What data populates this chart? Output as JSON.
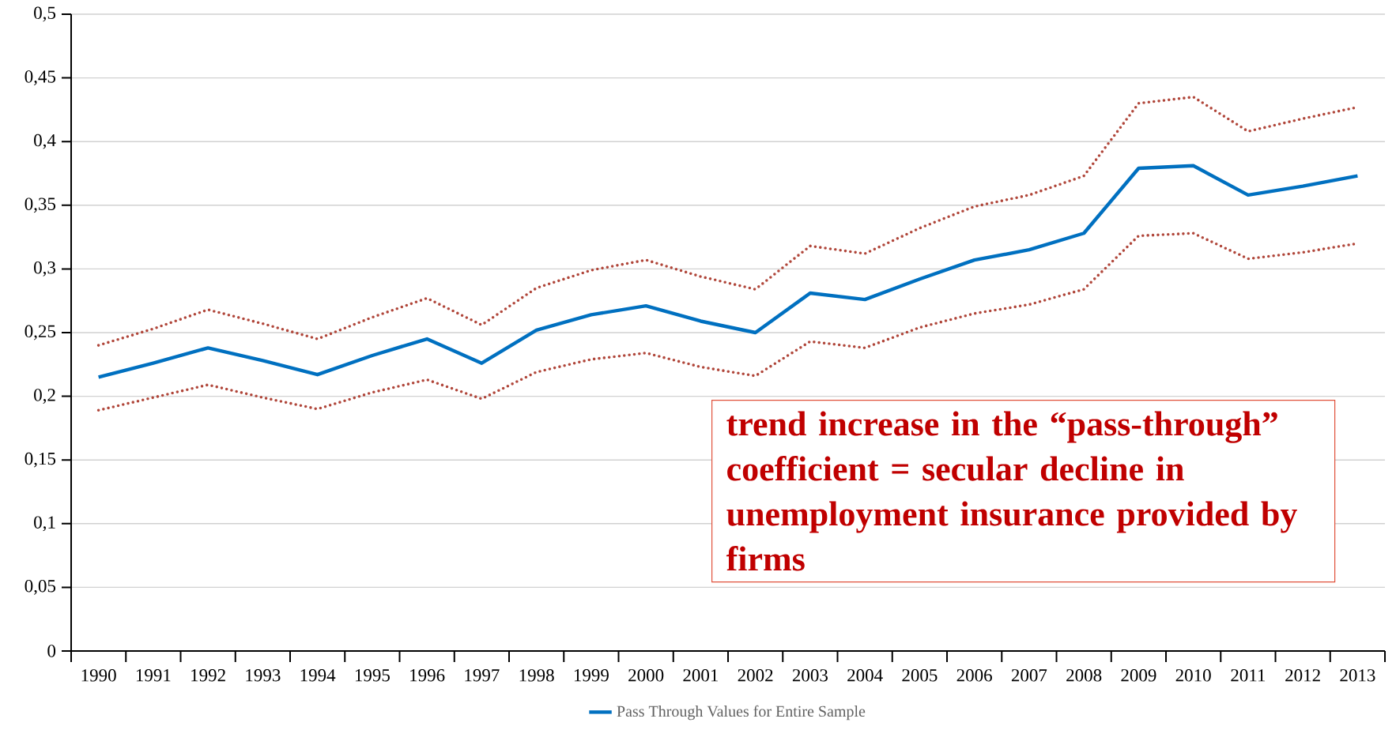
{
  "chart_data": {
    "type": "line",
    "categories": [
      "1990",
      "1991",
      "1992",
      "1993",
      "1994",
      "1995",
      "1996",
      "1997",
      "1998",
      "1999",
      "2000",
      "2001",
      "2002",
      "2003",
      "2004",
      "2005",
      "2006",
      "2007",
      "2008",
      "2009",
      "2010",
      "2011",
      "2012",
      "2013"
    ],
    "series": [
      {
        "name": "Pass Through Values for Entire Sample",
        "color": "#0070c0",
        "line_style": "solid",
        "values": [
          0.215,
          0.226,
          0.238,
          0.228,
          0.217,
          0.232,
          0.245,
          0.226,
          0.252,
          0.264,
          0.271,
          0.259,
          0.25,
          0.281,
          0.276,
          0.292,
          0.307,
          0.315,
          0.328,
          0.379,
          0.381,
          0.358,
          0.365,
          0.373
        ]
      },
      {
        "color": "#b0463a",
        "line_style": "dotted",
        "values": [
          0.24,
          0.253,
          0.268,
          0.257,
          0.245,
          0.262,
          0.277,
          0.256,
          0.285,
          0.299,
          0.307,
          0.294,
          0.284,
          0.318,
          0.312,
          0.332,
          0.349,
          0.358,
          0.373,
          0.43,
          0.435,
          0.408,
          0.418,
          0.427
        ]
      },
      {
        "color": "#b0463a",
        "line_style": "dotted",
        "values": [
          0.189,
          0.199,
          0.209,
          0.199,
          0.19,
          0.203,
          0.213,
          0.198,
          0.219,
          0.229,
          0.234,
          0.223,
          0.216,
          0.243,
          0.238,
          0.254,
          0.265,
          0.272,
          0.284,
          0.326,
          0.328,
          0.308,
          0.313,
          0.32
        ]
      }
    ],
    "ylim": [
      0,
      0.5
    ],
    "yticks": [
      0,
      {
        "value": 0.05,
        "label": "0,05"
      },
      {
        "value": 0.1,
        "label": "0,1"
      },
      {
        "value": 0.15,
        "label": "0,15"
      },
      {
        "value": 0.2,
        "label": "0,2"
      },
      {
        "value": 0.25,
        "label": "0,25"
      },
      {
        "value": 0.3,
        "label": "0,3"
      },
      {
        "value": 0.35,
        "label": "0,35"
      },
      {
        "value": 0.4,
        "label": "0,4"
      },
      {
        "value": 0.45,
        "label": "0,45"
      },
      {
        "value": 0.5,
        "label": "0,5"
      }
    ],
    "grid": "y",
    "legend": "bottom",
    "marker": "none",
    "annotations": [
      "trend increase in the “pass-through” coefficient = secular decline in unemployment insurance provided by firms"
    ]
  }
}
